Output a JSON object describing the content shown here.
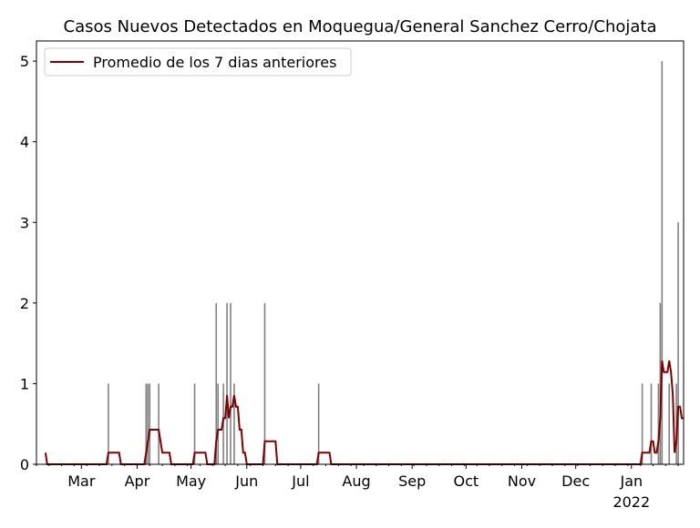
{
  "chart_data": {
    "type": "bar",
    "title": "Casos Nuevos Detectados en Moquegua/General Sanchez Cerro/Chojata",
    "xlabel": "",
    "ylabel": "",
    "ylim": [
      0,
      5.25
    ],
    "yticks": [
      "0",
      "1",
      "2",
      "3",
      "4",
      "5"
    ],
    "x_start": "2021-02-01",
    "xlim_days": [
      3,
      363
    ],
    "data_start_day": 8,
    "data_end_day": 363,
    "xticks": [
      {
        "label": "Mar",
        "day": 28
      },
      {
        "label": "Apr",
        "day": 59
      },
      {
        "label": "May",
        "day": 89
      },
      {
        "label": "Jun",
        "day": 120
      },
      {
        "label": "Jul",
        "day": 150
      },
      {
        "label": "Aug",
        "day": 181
      },
      {
        "label": "Sep",
        "day": 212
      },
      {
        "label": "Oct",
        "day": 242
      },
      {
        "label": "Nov",
        "day": 273
      },
      {
        "label": "Dec",
        "day": 303
      },
      {
        "label": "Jan",
        "day": 334,
        "sublabel": "2022"
      }
    ],
    "bars": [
      {
        "date": "2021-03-16",
        "day": 43,
        "value": 1
      },
      {
        "date": "2021-04-06",
        "day": 64,
        "value": 1
      },
      {
        "date": "2021-04-07",
        "day": 65,
        "value": 1
      },
      {
        "date": "2021-04-08",
        "day": 66,
        "value": 1
      },
      {
        "date": "2021-04-13",
        "day": 71,
        "value": 1
      },
      {
        "date": "2021-05-03",
        "day": 91,
        "value": 1
      },
      {
        "date": "2021-05-15",
        "day": 103,
        "value": 2
      },
      {
        "date": "2021-05-16",
        "day": 104,
        "value": 1
      },
      {
        "date": "2021-05-19",
        "day": 107,
        "value": 1
      },
      {
        "date": "2021-05-21",
        "day": 109,
        "value": 2
      },
      {
        "date": "2021-05-23",
        "day": 111,
        "value": 2
      },
      {
        "date": "2021-05-25",
        "day": 113,
        "value": 1
      },
      {
        "date": "2021-06-11",
        "day": 130,
        "value": 2
      },
      {
        "date": "2021-07-11",
        "day": 160,
        "value": 1
      },
      {
        "date": "2022-01-07",
        "day": 340,
        "value": 1
      },
      {
        "date": "2022-01-12",
        "day": 345,
        "value": 1
      },
      {
        "date": "2022-01-16",
        "day": 349,
        "value": 1
      },
      {
        "date": "2022-01-17",
        "day": 350,
        "value": 2
      },
      {
        "date": "2022-01-18",
        "day": 351,
        "value": 5
      },
      {
        "date": "2022-01-22",
        "day": 355,
        "value": 1
      },
      {
        "date": "2022-01-26",
        "day": 359,
        "value": 1
      },
      {
        "date": "2022-01-27",
        "day": 360,
        "value": 3
      }
    ],
    "avg_start": 0.143,
    "legend": {
      "label": "Promedio de los 7 dias anteriores",
      "placement": "upper-left"
    },
    "colors": {
      "bar": "#808080",
      "line": "#800000"
    }
  }
}
